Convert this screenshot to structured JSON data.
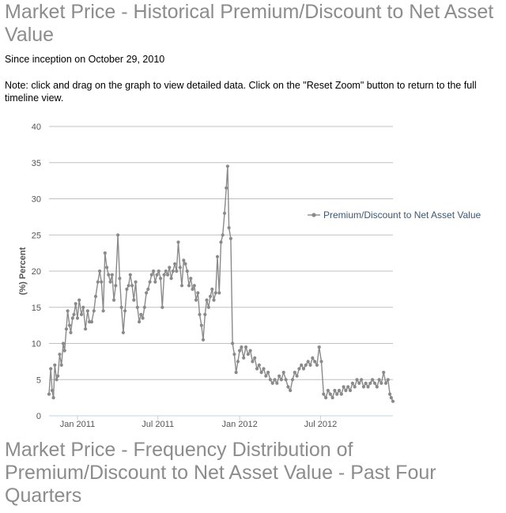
{
  "page": {
    "title": "Market Price - Historical Premium/Discount to Net Asset Value",
    "since_text": "Since inception on October 29, 2010",
    "note_text": "Note: click and drag on the graph to view detailed data. Click on the \"Reset Zoom\" button to return to the full timeline view.",
    "section2_title": "Market Price - Frequency Distribution of Premium/Discount to Net Asset Value - Past Four Quarters"
  },
  "chart_data": {
    "type": "line",
    "title": "",
    "xlabel": "",
    "ylabel": "(%) Percent",
    "ylim": [
      0,
      40
    ],
    "yticks": [
      0,
      5,
      10,
      15,
      20,
      25,
      30,
      35,
      40
    ],
    "xlim": [
      "2010-10-29",
      "2012-12-11"
    ],
    "xticks": [
      {
        "date": "2011-01-01",
        "label": "Jan 2011"
      },
      {
        "date": "2011-07-01",
        "label": "Jul 2011"
      },
      {
        "date": "2012-01-01",
        "label": "Jan 2012"
      },
      {
        "date": "2012-07-01",
        "label": "Jul 2012"
      }
    ],
    "grid": true,
    "legend_position": "right",
    "colors": {
      "series": "#8a8a8a",
      "band": "#c8c8c8",
      "legend_text": "#3e576f",
      "grid": "#c0c0c0",
      "axis": "#c0d0e0"
    },
    "series": [
      {
        "name": "Premium/Discount to Net Asset Value",
        "points": [
          [
            "2010-10-29",
            3.0
          ],
          [
            "2010-11-02",
            6.5
          ],
          [
            "2010-11-05",
            3.5
          ],
          [
            "2010-11-08",
            2.5
          ],
          [
            "2010-11-11",
            7.0
          ],
          [
            "2010-11-15",
            5.0
          ],
          [
            "2010-11-18",
            5.5
          ],
          [
            "2010-11-22",
            8.5
          ],
          [
            "2010-11-26",
            7.0
          ],
          [
            "2010-11-30",
            10.0
          ],
          [
            "2010-12-03",
            9.0
          ],
          [
            "2010-12-07",
            12.0
          ],
          [
            "2010-12-10",
            14.5
          ],
          [
            "2010-12-14",
            12.5
          ],
          [
            "2010-12-17",
            11.5
          ],
          [
            "2010-12-21",
            13.5
          ],
          [
            "2010-12-24",
            14.0
          ],
          [
            "2010-12-28",
            15.5
          ],
          [
            "2011-01-01",
            13.5
          ],
          [
            "2011-01-05",
            16.0
          ],
          [
            "2011-01-10",
            14.0
          ],
          [
            "2011-01-14",
            15.0
          ],
          [
            "2011-01-19",
            12.0
          ],
          [
            "2011-01-24",
            14.5
          ],
          [
            "2011-01-28",
            13.0
          ],
          [
            "2011-02-02",
            13.0
          ],
          [
            "2011-02-07",
            14.5
          ],
          [
            "2011-02-11",
            16.5
          ],
          [
            "2011-02-16",
            18.5
          ],
          [
            "2011-02-20",
            20.0
          ],
          [
            "2011-02-24",
            18.5
          ],
          [
            "2011-02-28",
            14.5
          ],
          [
            "2011-03-04",
            22.5
          ],
          [
            "2011-03-08",
            20.5
          ],
          [
            "2011-03-12",
            19.5
          ],
          [
            "2011-03-16",
            18.5
          ],
          [
            "2011-03-20",
            19.5
          ],
          [
            "2011-03-24",
            16.0
          ],
          [
            "2011-03-28",
            18.0
          ],
          [
            "2011-04-02",
            25.0
          ],
          [
            "2011-04-06",
            19.0
          ],
          [
            "2011-04-10",
            15.0
          ],
          [
            "2011-04-14",
            11.5
          ],
          [
            "2011-04-18",
            14.5
          ],
          [
            "2011-04-22",
            17.5
          ],
          [
            "2011-04-26",
            18.0
          ],
          [
            "2011-04-30",
            19.5
          ],
          [
            "2011-05-04",
            18.0
          ],
          [
            "2011-05-08",
            16.0
          ],
          [
            "2011-05-12",
            18.5
          ],
          [
            "2011-05-16",
            15.0
          ],
          [
            "2011-05-20",
            13.0
          ],
          [
            "2011-05-24",
            14.0
          ],
          [
            "2011-05-28",
            13.5
          ],
          [
            "2011-06-01",
            15.0
          ],
          [
            "2011-06-05",
            17.0
          ],
          [
            "2011-06-09",
            17.5
          ],
          [
            "2011-06-13",
            18.5
          ],
          [
            "2011-06-17",
            19.5
          ],
          [
            "2011-06-21",
            20.0
          ],
          [
            "2011-06-25",
            18.5
          ],
          [
            "2011-06-29",
            19.5
          ],
          [
            "2011-07-03",
            20.0
          ],
          [
            "2011-07-07",
            19.0
          ],
          [
            "2011-07-11",
            15.0
          ],
          [
            "2011-07-15",
            19.5
          ],
          [
            "2011-07-19",
            20.0
          ],
          [
            "2011-07-23",
            19.5
          ],
          [
            "2011-07-27",
            20.5
          ],
          [
            "2011-07-31",
            19.0
          ],
          [
            "2011-08-04",
            20.0
          ],
          [
            "2011-08-08",
            21.0
          ],
          [
            "2011-08-12",
            20.0
          ],
          [
            "2011-08-16",
            24.0
          ],
          [
            "2011-08-20",
            20.5
          ],
          [
            "2011-08-24",
            18.0
          ],
          [
            "2011-08-28",
            21.5
          ],
          [
            "2011-09-01",
            21.0
          ],
          [
            "2011-09-05",
            20.0
          ],
          [
            "2011-09-09",
            18.0
          ],
          [
            "2011-09-13",
            19.0
          ],
          [
            "2011-09-17",
            17.5
          ],
          [
            "2011-09-21",
            18.0
          ],
          [
            "2011-09-25",
            16.0
          ],
          [
            "2011-09-29",
            17.0
          ],
          [
            "2011-10-03",
            14.0
          ],
          [
            "2011-10-07",
            12.5
          ],
          [
            "2011-10-11",
            10.5
          ],
          [
            "2011-10-15",
            14.0
          ],
          [
            "2011-10-19",
            16.0
          ],
          [
            "2011-10-23",
            15.0
          ],
          [
            "2011-10-27",
            16.5
          ],
          [
            "2011-10-31",
            17.5
          ],
          [
            "2011-11-04",
            16.0
          ],
          [
            "2011-11-08",
            17.0
          ],
          [
            "2011-11-12",
            22.0
          ],
          [
            "2011-11-16",
            17.0
          ],
          [
            "2011-11-20",
            24.0
          ],
          [
            "2011-11-24",
            25.0
          ],
          [
            "2011-11-28",
            28.0
          ],
          [
            "2011-12-02",
            31.5
          ],
          [
            "2011-12-05",
            34.5
          ],
          [
            "2011-12-08",
            26.0
          ],
          [
            "2011-12-12",
            24.5
          ],
          [
            "2011-12-16",
            10.0
          ],
          [
            "2011-12-20",
            8.5
          ],
          [
            "2011-12-24",
            6.0
          ],
          [
            "2011-12-28",
            7.5
          ],
          [
            "2012-01-01",
            9.0
          ],
          [
            "2012-01-05",
            9.5
          ],
          [
            "2012-01-10",
            8.0
          ],
          [
            "2012-01-15",
            9.5
          ],
          [
            "2012-01-20",
            8.5
          ],
          [
            "2012-01-25",
            9.0
          ],
          [
            "2012-01-30",
            7.5
          ],
          [
            "2012-02-04",
            8.0
          ],
          [
            "2012-02-09",
            6.5
          ],
          [
            "2012-02-14",
            7.0
          ],
          [
            "2012-02-19",
            6.0
          ],
          [
            "2012-02-24",
            6.5
          ],
          [
            "2012-02-29",
            5.5
          ],
          [
            "2012-03-05",
            6.0
          ],
          [
            "2012-03-10",
            5.0
          ],
          [
            "2012-03-15",
            4.5
          ],
          [
            "2012-03-20",
            5.0
          ],
          [
            "2012-03-25",
            4.5
          ],
          [
            "2012-03-30",
            5.5
          ],
          [
            "2012-04-04",
            5.0
          ],
          [
            "2012-04-09",
            6.0
          ],
          [
            "2012-04-14",
            5.0
          ],
          [
            "2012-04-19",
            4.0
          ],
          [
            "2012-04-24",
            3.5
          ],
          [
            "2012-04-29",
            5.0
          ],
          [
            "2012-05-04",
            6.0
          ],
          [
            "2012-05-09",
            5.5
          ],
          [
            "2012-05-14",
            6.5
          ],
          [
            "2012-05-19",
            7.0
          ],
          [
            "2012-05-24",
            6.5
          ],
          [
            "2012-05-29",
            7.0
          ],
          [
            "2012-06-03",
            7.5
          ],
          [
            "2012-06-08",
            7.0
          ],
          [
            "2012-06-13",
            8.0
          ],
          [
            "2012-06-18",
            7.5
          ],
          [
            "2012-06-23",
            7.0
          ],
          [
            "2012-06-28",
            9.5
          ],
          [
            "2012-07-03",
            7.5
          ],
          [
            "2012-07-08",
            3.0
          ],
          [
            "2012-07-13",
            2.5
          ],
          [
            "2012-07-18",
            3.5
          ],
          [
            "2012-07-23",
            3.0
          ],
          [
            "2012-07-28",
            2.5
          ],
          [
            "2012-08-02",
            3.5
          ],
          [
            "2012-08-07",
            3.0
          ],
          [
            "2012-08-12",
            3.5
          ],
          [
            "2012-08-17",
            3.0
          ],
          [
            "2012-08-22",
            4.0
          ],
          [
            "2012-08-27",
            3.5
          ],
          [
            "2012-09-01",
            4.0
          ],
          [
            "2012-09-06",
            3.5
          ],
          [
            "2012-09-11",
            4.5
          ],
          [
            "2012-09-16",
            4.0
          ],
          [
            "2012-09-21",
            5.0
          ],
          [
            "2012-09-26",
            4.5
          ],
          [
            "2012-10-01",
            5.0
          ],
          [
            "2012-10-06",
            4.0
          ],
          [
            "2012-10-11",
            4.5
          ],
          [
            "2012-10-16",
            4.0
          ],
          [
            "2012-10-21",
            4.5
          ],
          [
            "2012-10-26",
            5.0
          ],
          [
            "2012-10-31",
            4.5
          ],
          [
            "2012-11-05",
            4.0
          ],
          [
            "2012-11-10",
            5.0
          ],
          [
            "2012-11-15",
            4.5
          ],
          [
            "2012-11-20",
            6.0
          ],
          [
            "2012-11-25",
            4.5
          ],
          [
            "2012-11-30",
            5.0
          ],
          [
            "2012-12-04",
            3.0
          ],
          [
            "2012-12-07",
            2.5
          ],
          [
            "2012-12-11",
            2.0
          ]
        ]
      }
    ]
  }
}
